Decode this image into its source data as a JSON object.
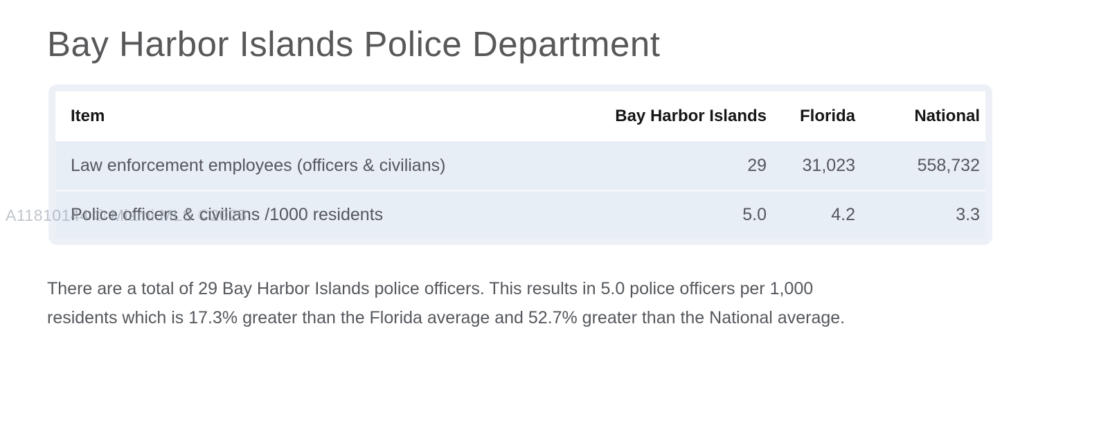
{
  "page": {
    "title": "Bay Harbor Islands Police Department"
  },
  "table": {
    "columns": [
      "Item",
      "Bay Harbor Islands",
      "Florida",
      "National"
    ],
    "rows": [
      {
        "item": "Law enforcement employees (officers & civilians)",
        "bay_harbor_islands": "29",
        "florida": "31,023",
        "national": "558,732"
      },
      {
        "item": "Police officers & civilians /1000 residents",
        "bay_harbor_islands": "5.0",
        "florida": "4.2",
        "national": "3.3"
      }
    ]
  },
  "summary": {
    "text": "There are a total of 29 Bay Harbor Islands police officers. This results in 5.0 police officers per 1,000 residents which is 17.3% greater than the Florida average and 52.7% greater than the National average.",
    "lines": [
      "There are a total of 29 Bay Harbor Islands police officers. This results in 5.0 police officers per 1,000",
      "residents which is 17.3% greater than the Florida average and 52.7% greater than the National average."
    ]
  },
  "watermark": {
    "text": "A11810144 © Miami MLS ©2025"
  },
  "colors": {
    "title_text": "#58585b",
    "header_text": "#161618",
    "body_text": "#54575c",
    "card_background": "#edf1f7",
    "row_background": "#e8eef5",
    "header_background": "#ffffff",
    "watermark_text": "#8d97a3"
  }
}
